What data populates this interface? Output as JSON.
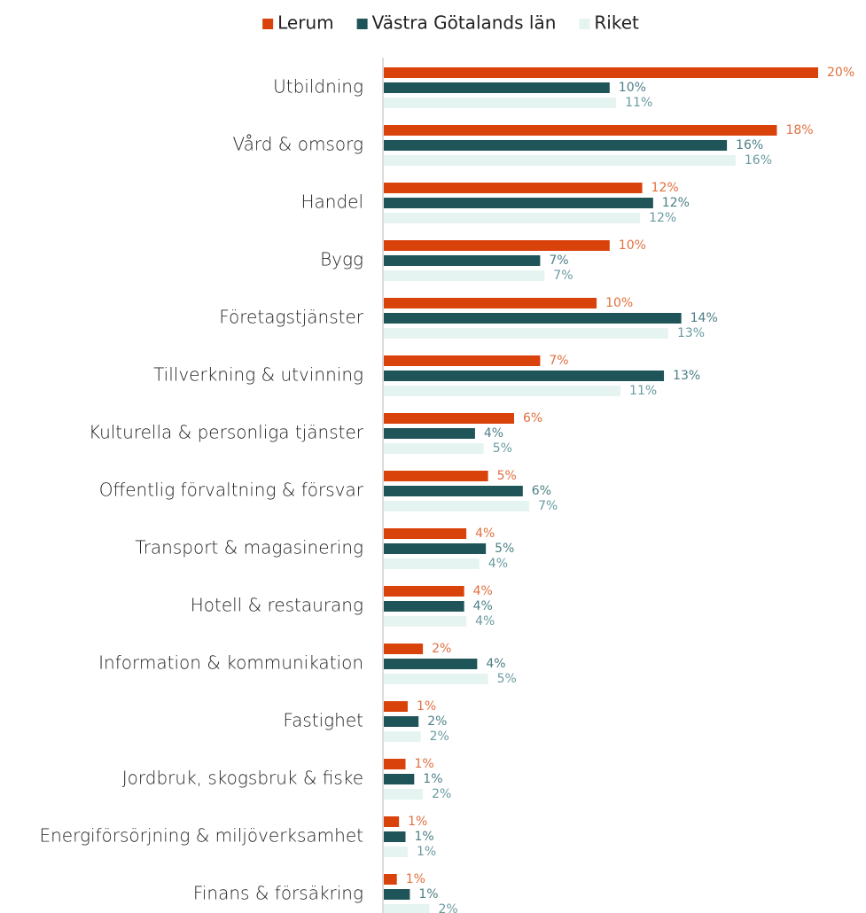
{
  "chart_data": {
    "type": "bar",
    "orientation": "horizontal",
    "categories": [
      "Utbildning",
      "Vård & omsorg",
      "Handel",
      "Bygg",
      "Företagstjänster",
      "Tillverkning & utvinning",
      "Kulturella & personliga tjänster",
      "Offentlig förvaltning & försvar",
      "Transport & magasinering",
      "Hotell & restaurang",
      "Information & kommunikation",
      "Fastighet",
      "Jordbruk, skogsbruk & fiske",
      "Energiförsörjning & miljöverksamhet",
      "Finans & försäkring"
    ],
    "series": [
      {
        "name": "Lerum",
        "color": "#d9420b",
        "label_color": "#e0703f",
        "values": [
          20.0,
          18.1,
          11.9,
          10.4,
          9.8,
          7.2,
          6.0,
          4.8,
          3.8,
          3.7,
          1.8,
          1.1,
          1.0,
          0.7,
          0.6
        ],
        "value_labels": [
          "20%",
          "18%",
          "12%",
          "10%",
          "10%",
          "7%",
          "6%",
          "5%",
          "4%",
          "4%",
          "2%",
          "1%",
          "1%",
          "1%",
          "1%"
        ]
      },
      {
        "name": "Västra Götalands län",
        "color": "#1f5458",
        "label_color": "#4d7f86",
        "values": [
          10.4,
          15.8,
          12.4,
          7.2,
          13.7,
          12.9,
          4.2,
          6.4,
          4.7,
          3.7,
          4.3,
          1.6,
          1.4,
          1.0,
          1.2
        ],
        "value_labels": [
          "10%",
          "16%",
          "12%",
          "7%",
          "14%",
          "13%",
          "4%",
          "6%",
          "5%",
          "4%",
          "4%",
          "2%",
          "1%",
          "1%",
          "1%"
        ]
      },
      {
        "name": "Riket",
        "color": "#e6f4f1",
        "label_color": "#6a9ba1",
        "values": [
          10.7,
          16.2,
          11.8,
          7.4,
          13.1,
          10.9,
          4.6,
          6.7,
          4.4,
          3.8,
          4.8,
          1.7,
          1.8,
          1.1,
          2.1
        ],
        "value_labels": [
          "11%",
          "16%",
          "12%",
          "7%",
          "13%",
          "11%",
          "5%",
          "7%",
          "4%",
          "4%",
          "5%",
          "2%",
          "2%",
          "1%",
          "2%"
        ]
      }
    ],
    "xlim": [
      0,
      22
    ],
    "legend": "top"
  }
}
